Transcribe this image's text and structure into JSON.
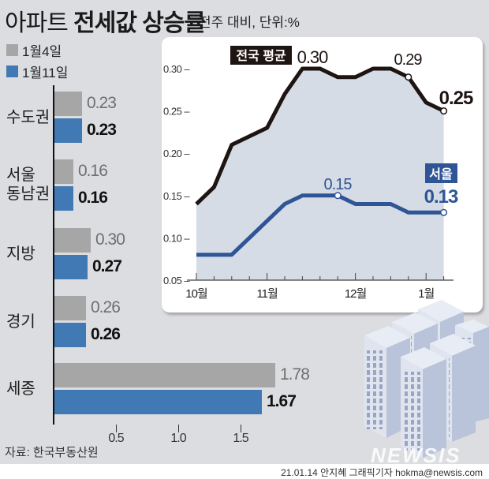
{
  "header": {
    "title_light": "아파트",
    "title_bold": "전세값 상승률",
    "subtitle": "전주 대비, 단위:%"
  },
  "legend": [
    {
      "label": "1월4일",
      "color": "#a6a6a6"
    },
    {
      "label": "1월11일",
      "color": "#4179b5"
    }
  ],
  "source": "자료: 한국부동산원",
  "credit": "21.01.14 안지혜 그래픽기자 hokma@newsis.com",
  "watermark": "NEWSIS",
  "chart_data": [
    {
      "type": "bar",
      "orientation": "horizontal",
      "title": "아파트 전세값 상승률",
      "subtitle": "전주 대비, 단위:%",
      "categories": [
        "수도권",
        "서울 동남권",
        "지방",
        "경기",
        "세종"
      ],
      "series": [
        {
          "name": "1월4일",
          "color": "#a6a6a6",
          "values": [
            0.23,
            0.16,
            0.3,
            0.26,
            1.78
          ]
        },
        {
          "name": "1월11일",
          "color": "#4179b5",
          "values": [
            0.23,
            0.16,
            0.27,
            0.26,
            1.67
          ]
        }
      ],
      "xticks": [
        "0.5",
        "1.0",
        "1.5"
      ],
      "xlim": [
        0,
        1.9
      ],
      "legend_position": "top-left",
      "source": "자료: 한국부동산원"
    },
    {
      "type": "line",
      "x_labels": [
        "10월",
        "11월",
        "12월",
        "1월"
      ],
      "x_label_indices": [
        0,
        4,
        9,
        13
      ],
      "x_count": 15,
      "yticks": [
        "0.05",
        "0.10",
        "0.15",
        "0.20",
        "0.25",
        "0.30"
      ],
      "ylim": [
        0.05,
        0.31
      ],
      "series": [
        {
          "name": "전국 평균",
          "color": "#1e1412",
          "values": [
            0.14,
            0.16,
            0.21,
            0.22,
            0.23,
            0.27,
            0.3,
            0.3,
            0.29,
            0.29,
            0.3,
            0.3,
            0.29,
            0.26,
            0.25
          ],
          "annotations": [
            {
              "index": 6,
              "text": "0.30"
            },
            {
              "index": 12,
              "text": "0.29"
            },
            {
              "index": 14,
              "text": "0.25"
            }
          ]
        },
        {
          "name": "서울",
          "color": "#2f5597",
          "values": [
            0.08,
            0.08,
            0.08,
            0.1,
            0.12,
            0.14,
            0.15,
            0.15,
            0.15,
            0.14,
            0.14,
            0.14,
            0.13,
            0.13,
            0.13
          ],
          "annotations": [
            {
              "index": 8,
              "text": "0.15"
            },
            {
              "index": 14,
              "text": "0.13"
            }
          ]
        }
      ],
      "area_fill": "#d5dce5",
      "grid": false
    }
  ]
}
